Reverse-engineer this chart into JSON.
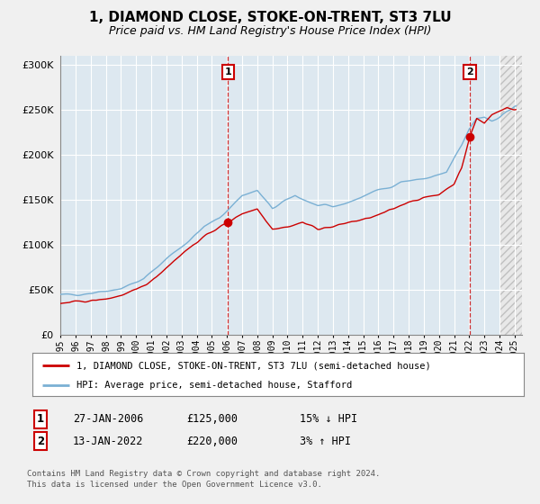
{
  "title": "1, DIAMOND CLOSE, STOKE-ON-TRENT, ST3 7LU",
  "subtitle": "Price paid vs. HM Land Registry's House Price Index (HPI)",
  "ylim": [
    0,
    310000
  ],
  "xlim_start": 1995.0,
  "xlim_end": 2025.5,
  "yticks": [
    0,
    50000,
    100000,
    150000,
    200000,
    250000,
    300000
  ],
  "xticks": [
    1995,
    1996,
    1997,
    1998,
    1999,
    2000,
    2001,
    2002,
    2003,
    2004,
    2005,
    2006,
    2007,
    2008,
    2009,
    2010,
    2011,
    2012,
    2013,
    2014,
    2015,
    2016,
    2017,
    2018,
    2019,
    2020,
    2021,
    2022,
    2023,
    2024,
    2025
  ],
  "bg_color": "#f0f0f0",
  "plot_bg_color": "#dde8f0",
  "hatch_bg_color": "#e8e8e8",
  "grid_color": "#ffffff",
  "hpi_color": "#7ab0d4",
  "price_color": "#cc0000",
  "sale1_date": 2006.07,
  "sale1_price": 125000,
  "sale2_date": 2022.04,
  "sale2_price": 220000,
  "legend_label_price": "1, DIAMOND CLOSE, STOKE-ON-TRENT, ST3 7LU (semi-detached house)",
  "legend_label_hpi": "HPI: Average price, semi-detached house, Stafford",
  "table_row1": [
    "1",
    "27-JAN-2006",
    "£125,000",
    "15% ↓ HPI"
  ],
  "table_row2": [
    "2",
    "13-JAN-2022",
    "£220,000",
    "3% ↑ HPI"
  ],
  "footer": "Contains HM Land Registry data © Crown copyright and database right 2024.\nThis data is licensed under the Open Government Licence v3.0.",
  "title_fontsize": 11,
  "subtitle_fontsize": 9,
  "hpi_anchors_x": [
    1995.0,
    1997.0,
    1999.0,
    2000.5,
    2002.0,
    2003.5,
    2004.5,
    2005.5,
    2007.0,
    2008.0,
    2009.0,
    2010.5,
    2012.0,
    2013.0,
    2014.5,
    2015.5,
    2016.5,
    2017.5,
    2018.5,
    2019.5,
    2020.5,
    2021.0,
    2021.5,
    2022.0,
    2022.5,
    2023.0,
    2023.5,
    2024.0,
    2024.5,
    2025.0
  ],
  "hpi_anchors_y": [
    44000,
    47000,
    52000,
    62000,
    85000,
    105000,
    120000,
    130000,
    155000,
    160000,
    140000,
    155000,
    143000,
    142000,
    150000,
    158000,
    163000,
    170000,
    172000,
    175000,
    180000,
    195000,
    210000,
    228000,
    240000,
    242000,
    238000,
    242000,
    248000,
    252000
  ],
  "price_anchors_x": [
    1995.0,
    1996.0,
    1997.0,
    1998.0,
    1999.0,
    2000.0,
    2001.0,
    2002.0,
    2003.0,
    2004.0,
    2005.0,
    2006.07,
    2007.0,
    2008.0,
    2009.0,
    2010.0,
    2011.0,
    2012.0,
    2013.0,
    2014.0,
    2015.0,
    2016.0,
    2017.0,
    2018.0,
    2019.0,
    2020.0,
    2021.0,
    2021.5,
    2022.04,
    2022.5,
    2023.0,
    2023.5,
    2024.0,
    2024.5,
    2025.0
  ],
  "price_anchors_y": [
    35000,
    37000,
    38000,
    40000,
    44000,
    50000,
    60000,
    75000,
    90000,
    103000,
    115000,
    125000,
    135000,
    140000,
    118000,
    120000,
    125000,
    118000,
    120000,
    125000,
    128000,
    133000,
    140000,
    148000,
    152000,
    156000,
    168000,
    185000,
    220000,
    240000,
    235000,
    245000,
    248000,
    252000,
    250000
  ],
  "hatch_start": 2024.0
}
